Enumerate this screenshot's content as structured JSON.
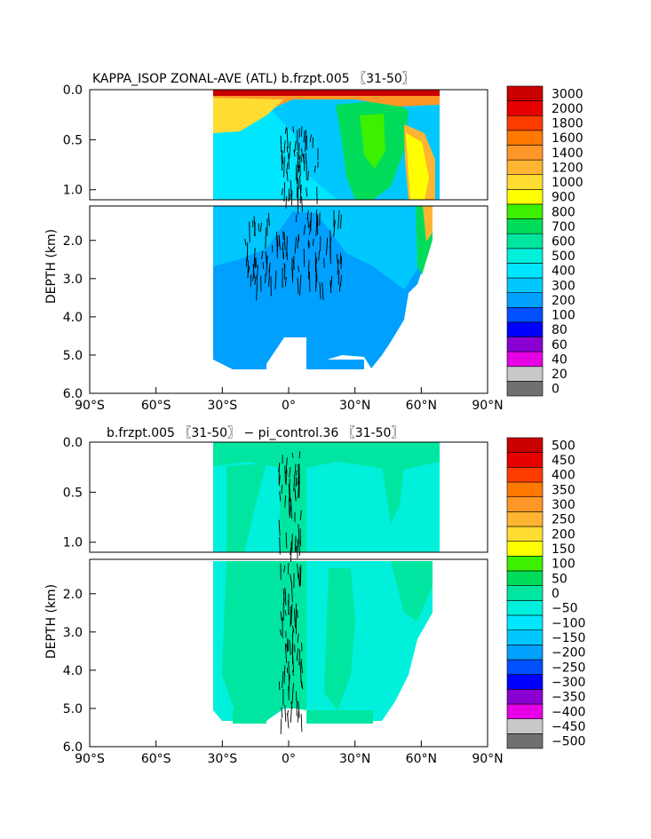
{
  "chart_data": [
    {
      "type": "heatmap",
      "title": "KAPPA_ISOP ZONAL-AVE (ATL) b.frzpt.005 〖31-50〗",
      "xlabel": "",
      "ylabel": "DEPTH (km)",
      "xlim": [
        -90,
        90
      ],
      "ylim": [
        6.0,
        0.0
      ],
      "x_tick_labels": [
        "90°S",
        "60°S",
        "30°S",
        "0°",
        "30°N",
        "60°N",
        "90°N"
      ],
      "y_tick_labels_upper": [
        "0.0",
        "0.5",
        "1.0"
      ],
      "y_tick_labels_lower": [
        "2.0",
        "3.0",
        "4.0",
        "5.0",
        "6.0"
      ],
      "colorbar_levels": [
        "0",
        "20",
        "40",
        "60",
        "80",
        "100",
        "200",
        "300",
        "400",
        "500",
        "600",
        "700",
        "800",
        "900",
        "1000",
        "1200",
        "1400",
        "1600",
        "1800",
        "2000",
        "3000"
      ],
      "colorbar_colors": [
        "#707070",
        "#c8c8c8",
        "#e600e6",
        "#8a00d2",
        "#0000ff",
        "#0050ff",
        "#00a0ff",
        "#00c8ff",
        "#00e6ff",
        "#00f0dc",
        "#00e6a0",
        "#00dc5a",
        "#3cf000",
        "#ffff00",
        "#ffdc32",
        "#ffb432",
        "#ff9628",
        "#ff7800",
        "#ff3c00",
        "#e60000",
        "#c80000"
      ]
    },
    {
      "type": "heatmap",
      "title": "b.frzpt.005 〖31-50〗 − pi_control.36 〖31-50〗",
      "xlabel": "",
      "ylabel": "DEPTH (km)",
      "xlim": [
        -90,
        90
      ],
      "ylim": [
        6.0,
        0.0
      ],
      "x_tick_labels": [
        "90°S",
        "60°S",
        "30°S",
        "0°",
        "30°N",
        "60°N",
        "90°N"
      ],
      "y_tick_labels_upper": [
        "0.0",
        "0.5",
        "1.0"
      ],
      "y_tick_labels_lower": [
        "2.0",
        "3.0",
        "4.0",
        "5.0",
        "6.0"
      ],
      "colorbar_levels": [
        "−500",
        "−450",
        "−400",
        "−350",
        "−300",
        "−250",
        "−200",
        "−150",
        "−100",
        "−50",
        "0",
        "50",
        "100",
        "150",
        "200",
        "250",
        "300",
        "350",
        "400",
        "450",
        "500"
      ],
      "colorbar_colors": [
        "#707070",
        "#c8c8c8",
        "#e600e6",
        "#8a00d2",
        "#0000ff",
        "#0050ff",
        "#00a0ff",
        "#00c8ff",
        "#00e6ff",
        "#00f0dc",
        "#00e6a0",
        "#00dc5a",
        "#3cf000",
        "#ffff00",
        "#ffdc32",
        "#ffb432",
        "#ff9628",
        "#ff7800",
        "#ff3c00",
        "#e60000",
        "#c80000"
      ]
    }
  ]
}
